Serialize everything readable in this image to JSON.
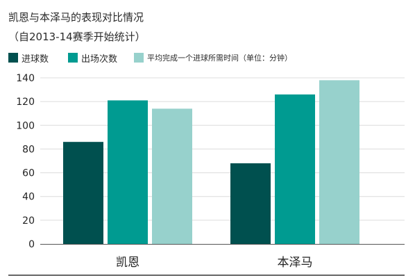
{
  "header": {
    "title": "凯恩与本泽马的表现对比情况",
    "subtitle": "（自2013-14赛季开始统计）"
  },
  "chart_data": {
    "type": "bar",
    "title": "凯恩与本泽马的表现对比情况",
    "subtitle": "（自2013-14赛季开始统计）",
    "categories": [
      "凯恩",
      "本泽马"
    ],
    "series": [
      {
        "name": "进球数",
        "color": "#00504f",
        "values": [
          86,
          68
        ]
      },
      {
        "name": "出场次数",
        "color": "#009b91",
        "values": [
          121,
          126
        ]
      },
      {
        "name": "平均完成一个进球所需时间（单位：分钟）",
        "color": "#97d1cc",
        "values": [
          114,
          138
        ]
      }
    ],
    "ylim": [
      0,
      140
    ],
    "yticks": [
      0,
      20,
      40,
      60,
      80,
      100,
      120,
      140
    ],
    "grid": true,
    "legend": "top-left"
  }
}
